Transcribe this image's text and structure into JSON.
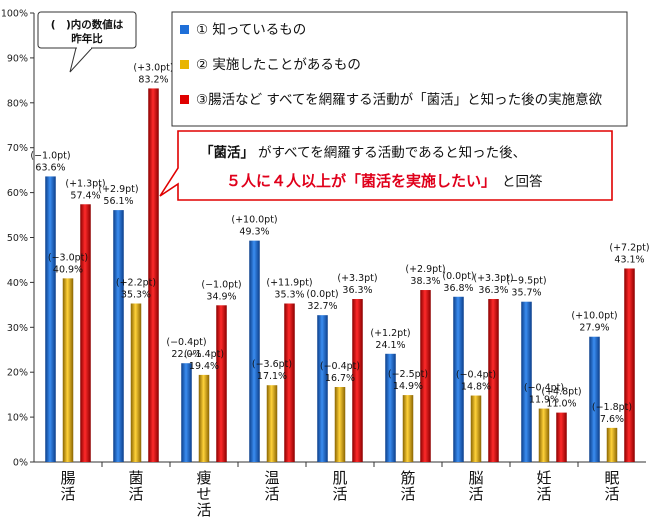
{
  "chart_data": {
    "type": "bar",
    "categories": [
      "腸\n活",
      "菌\n活",
      "痩\nせ\n活",
      "温\n活",
      "肌\n活",
      "筋\n活",
      "脳\n活",
      "妊\n活",
      "眠\n活"
    ],
    "ylim": [
      0,
      100
    ],
    "yticks": [
      "0%",
      "10%",
      "20%",
      "30%",
      "40%",
      "50%",
      "60%",
      "70%",
      "80%",
      "90%",
      "100%"
    ],
    "grid": false,
    "legend_position": "top-right",
    "series": [
      {
        "name": "① 知っているもの",
        "color": "#1f6fd8",
        "values": [
          63.6,
          56.1,
          22.0,
          49.3,
          32.7,
          24.1,
          36.8,
          35.7,
          27.9
        ],
        "labels": [
          "63.6%",
          "56.1%",
          "22.0%",
          "49.3%",
          "32.7%",
          "24.1%",
          "36.8%",
          "35.7%",
          "27.9%"
        ],
        "changes": [
          "(−1.0pt)",
          "(+2.9pt)",
          "(−0.4pt)",
          "(+10.0pt)",
          "(0.0pt)",
          "(+1.2pt)",
          "(0.0pt)",
          "(−9.5pt)",
          "(+10.0pt)"
        ]
      },
      {
        "name": "② 実施したことがあるもの",
        "color": "#e8b400",
        "values": [
          40.9,
          35.3,
          19.4,
          17.1,
          16.7,
          14.9,
          14.8,
          11.9,
          7.6
        ],
        "labels": [
          "40.9%",
          "35.3%",
          "19.4%",
          "17.1%",
          "16.7%",
          "14.9%",
          "14.8%",
          "11.9%",
          "7.6%"
        ],
        "changes": [
          "(−3.0pt)",
          "(+2.2pt)",
          "(−1.4pt)",
          "(−3.6pt)",
          "(−0.4pt)",
          "(−2.5pt)",
          "(−0.4pt)",
          "(−0.4pt)",
          "(−1.8pt)"
        ]
      },
      {
        "name": "③腸活など すべてを網羅する活動が「菌活」と知った後の実施意欲",
        "color": "#e00000",
        "values": [
          57.4,
          83.2,
          34.9,
          35.3,
          36.3,
          38.3,
          36.3,
          11.0,
          43.1
        ],
        "labels": [
          "57.4%",
          "83.2%",
          "34.9%",
          "35.3%",
          "36.3%",
          "38.3%",
          "36.3%",
          "11.0%",
          "43.1%"
        ],
        "changes": [
          "(+1.3pt)",
          "(+3.0pt)",
          "(−1.0pt)",
          "(+11.9pt)",
          "(+3.3pt)",
          "(+2.9pt)",
          "(+3.3pt)",
          "(+4.8pt)",
          "(+7.2pt)"
        ]
      }
    ]
  },
  "note": {
    "line1": "(　)内の数値は",
    "line2": "昨年比"
  },
  "callout": {
    "l1_a": "「菌活」",
    "l1_b": "がすべてを網羅する活動であると知った後、",
    "l2_a": "５人に４人以上が「菌活を実施したい」",
    "l2_b": "と回答"
  }
}
